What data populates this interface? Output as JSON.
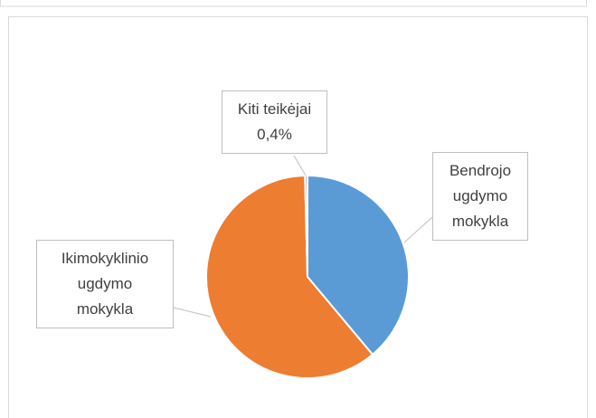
{
  "chart_data": {
    "type": "pie",
    "categories": [
      "Bendrojo ugdymo mokykla",
      "Ikimokyklinio ugdymo mokykla",
      "Kiti teikėjai"
    ],
    "values": [
      38.9,
      60.7,
      0.4
    ],
    "value_labels": [
      null,
      null,
      "0,4%"
    ],
    "colors": [
      "#5b9bd5",
      "#ed7d31",
      "#a5a5a5"
    ]
  }
}
